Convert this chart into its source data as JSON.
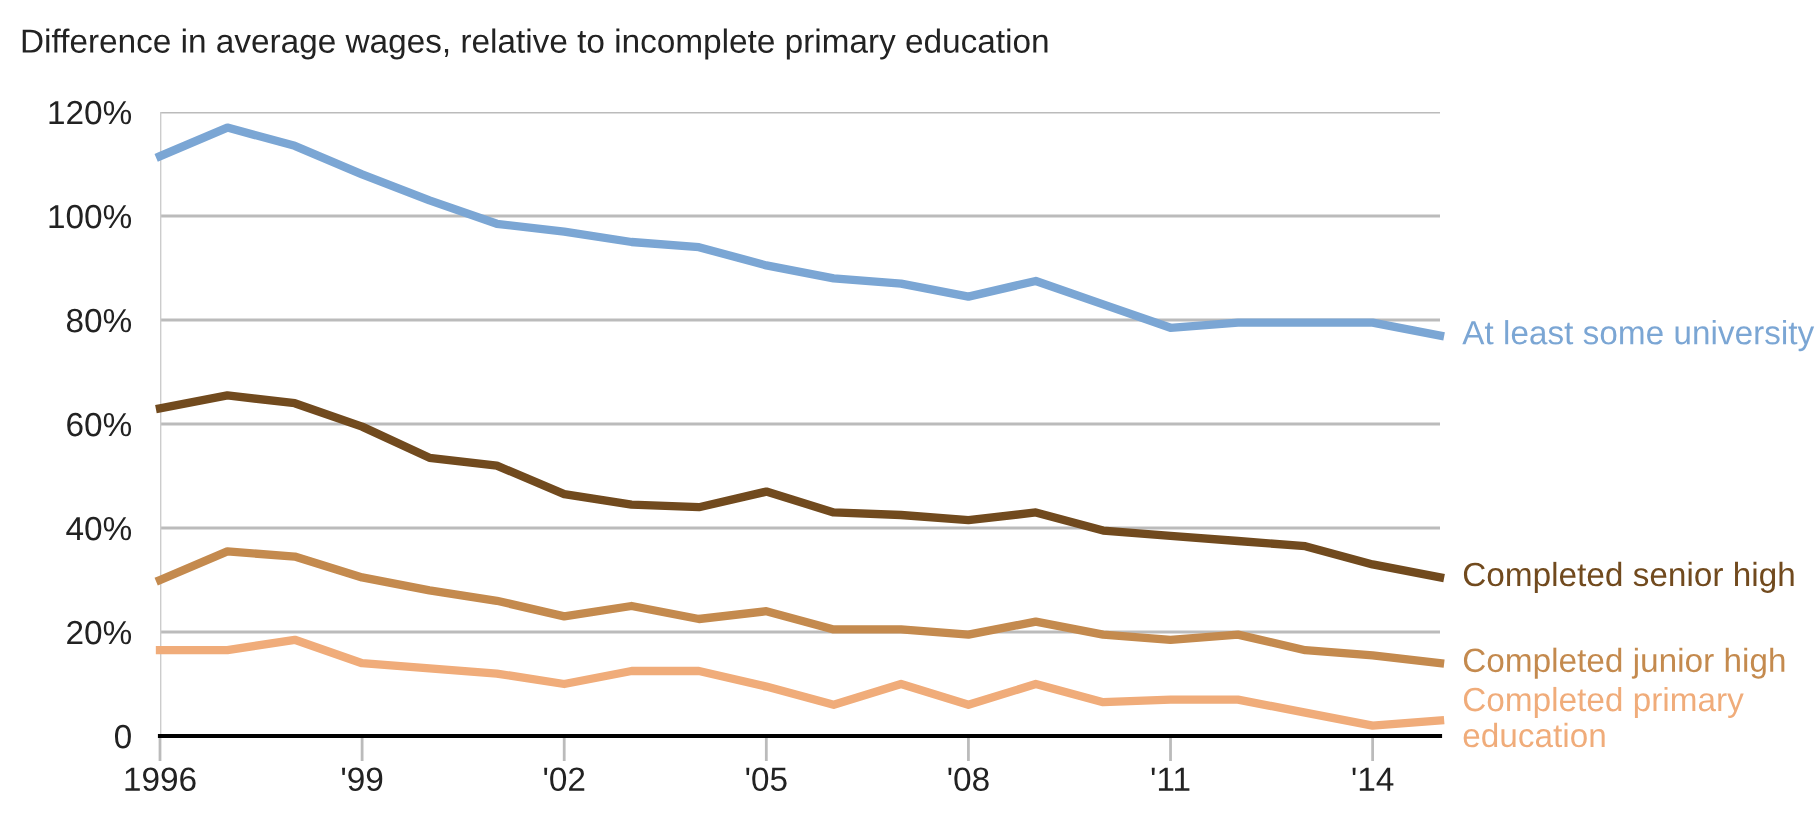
{
  "chart_data": {
    "type": "line",
    "title": "Difference in average wages, relative to incomplete primary education",
    "x": [
      1996,
      1997,
      1998,
      1999,
      2000,
      2001,
      2002,
      2003,
      2004,
      2005,
      2006,
      2007,
      2008,
      2009,
      2010,
      2011,
      2012,
      2013,
      2014,
      2015
    ],
    "series": [
      {
        "name": "At least some university",
        "color": "#7ba6d4",
        "values": [
          111.5,
          117,
          113.5,
          108,
          103,
          98.5,
          97,
          95,
          94,
          90.5,
          88,
          87,
          84.5,
          87.5,
          83,
          78.5,
          79.5,
          79.5,
          79.5,
          77
        ]
      },
      {
        "name": "Completed senior high",
        "color": "#714a1e",
        "values": [
          63,
          65.5,
          64,
          59.5,
          53.5,
          52,
          46.5,
          44.5,
          44,
          47,
          43,
          42.5,
          41.5,
          43,
          39.5,
          38.5,
          37.5,
          36.5,
          33,
          30.5
        ]
      },
      {
        "name": "Completed junior high",
        "color": "#c48a4e",
        "values": [
          30,
          35.5,
          34.5,
          30.5,
          28,
          26,
          23,
          25,
          22.5,
          24,
          20.5,
          20.5,
          19.5,
          22,
          19.5,
          18.5,
          19.5,
          16.5,
          15.5,
          14
        ]
      },
      {
        "name": "Completed primary education",
        "color": "#f0ac7a",
        "values": [
          16.5,
          16.5,
          18.5,
          14,
          13,
          12,
          10,
          12.5,
          12.5,
          9.5,
          6,
          10,
          6,
          10,
          6.5,
          7,
          7,
          4.5,
          2,
          3
        ]
      }
    ],
    "xlim": [
      1996,
      2015
    ],
    "xticks": [
      {
        "value": 1996,
        "label": "1996"
      },
      {
        "value": 1999,
        "label": "'99"
      },
      {
        "value": 2002,
        "label": "'02"
      },
      {
        "value": 2005,
        "label": "'05"
      },
      {
        "value": 2008,
        "label": "'08"
      },
      {
        "value": 2011,
        "label": "'11"
      },
      {
        "value": 2014,
        "label": "'14"
      }
    ],
    "ylim": [
      0,
      120
    ],
    "yticks": [
      {
        "value": 0,
        "label": "0"
      },
      {
        "value": 20,
        "label": "20%"
      },
      {
        "value": 40,
        "label": "40%"
      },
      {
        "value": 60,
        "label": "60%"
      },
      {
        "value": 80,
        "label": "80%"
      },
      {
        "value": 100,
        "label": "100%"
      },
      {
        "value": 120,
        "label": "120%"
      }
    ],
    "grid": "y",
    "legend": false,
    "line_style": "solid",
    "marker": "none"
  }
}
